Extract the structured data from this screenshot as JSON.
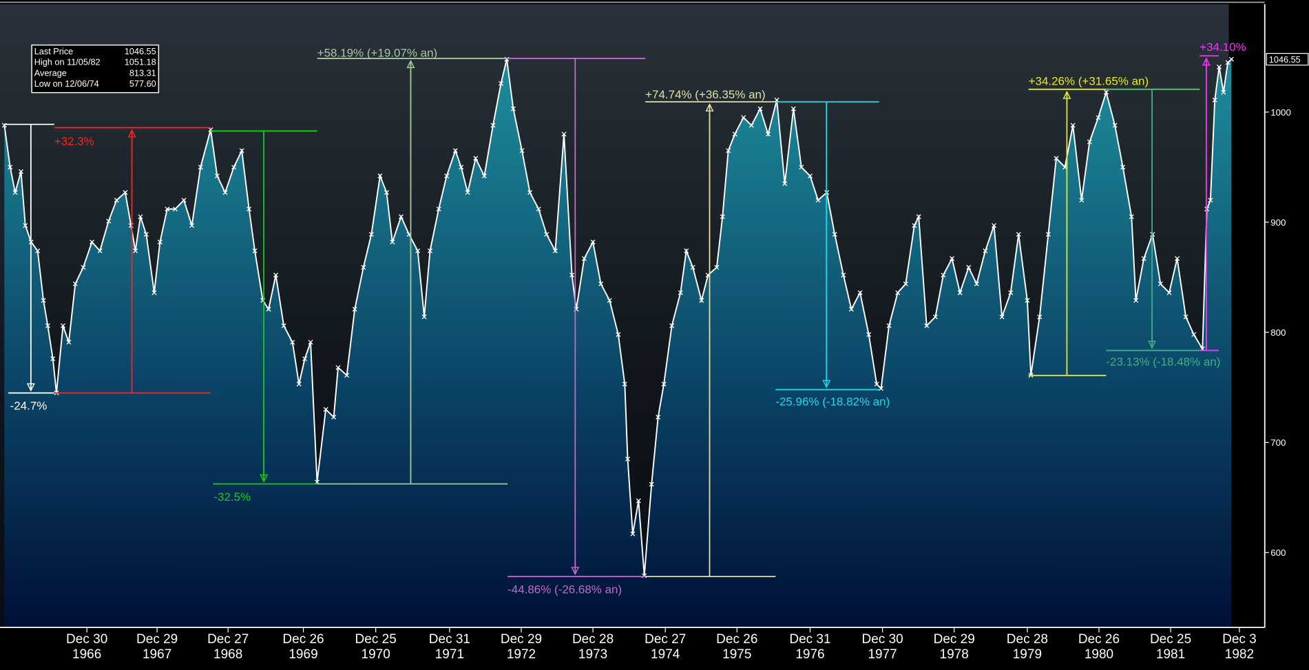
{
  "chart_data": {
    "type": "line",
    "xlim": [
      1965.8,
      1983.27
    ],
    "ylim": [
      532,
      1098
    ],
    "yticks": [
      600,
      700,
      800,
      900,
      1000
    ],
    "xticks": [
      {
        "value": 1967.0,
        "label": "Dec 30\n1966"
      },
      {
        "value": 1967.97,
        "label": "Dec 29\n1967"
      },
      {
        "value": 1968.95,
        "label": "Dec 27\n1968"
      },
      {
        "value": 1969.99,
        "label": "Dec 26\n1969"
      },
      {
        "value": 1970.99,
        "label": "Dec 25\n1970"
      },
      {
        "value": 1972.01,
        "label": "Dec 31\n1971"
      },
      {
        "value": 1973.0,
        "label": "Dec 29\n1972"
      },
      {
        "value": 1973.99,
        "label": "Dec 28\n1973"
      },
      {
        "value": 1974.99,
        "label": "Dec 27\n1974"
      },
      {
        "value": 1975.98,
        "label": "Dec 26\n1975"
      },
      {
        "value": 1976.99,
        "label": "Dec 31\n1976"
      },
      {
        "value": 1977.99,
        "label": "Dec 30\n1977"
      },
      {
        "value": 1978.98,
        "label": "Dec 29\n1978"
      },
      {
        "value": 1979.99,
        "label": "Dec 28\n1979"
      },
      {
        "value": 1980.98,
        "label": "Dec 26\n1980"
      },
      {
        "value": 1981.97,
        "label": "Dec 25\n1981"
      },
      {
        "value": 1982.92,
        "label": "Dec 3\n1982"
      }
    ],
    "area_colors": [
      "#1c8898",
      "#0b4466",
      "#001038"
    ],
    "background_colors": [
      "#29323a",
      "#10161b",
      "#080c16"
    ],
    "series": [
      {
        "color": "#ffffff",
        "x": [
          1965.86,
          1965.94,
          1966.01,
          1966.09,
          1966.15,
          1966.23,
          1966.32,
          1966.4,
          1966.46,
          1966.53,
          1966.58,
          1966.67,
          1966.75,
          1966.84,
          1966.95,
          1967.07,
          1967.18,
          1967.3,
          1967.41,
          1967.53,
          1967.61,
          1967.67,
          1967.74,
          1967.82,
          1967.93,
          1968.01,
          1968.11,
          1968.22,
          1968.34,
          1968.45,
          1968.57,
          1968.71,
          1968.8,
          1968.91,
          1969.03,
          1969.14,
          1969.24,
          1969.32,
          1969.43,
          1969.51,
          1969.61,
          1969.72,
          1969.84,
          1969.93,
          1970.01,
          1970.09,
          1970.18,
          1970.3,
          1970.41,
          1970.47,
          1970.59,
          1970.7,
          1970.82,
          1970.93,
          1971.05,
          1971.14,
          1971.22,
          1971.34,
          1971.45,
          1971.57,
          1971.66,
          1971.74,
          1971.86,
          1971.97,
          1972.09,
          1972.17,
          1972.26,
          1972.37,
          1972.49,
          1972.61,
          1972.72,
          1972.8,
          1972.89,
          1973.01,
          1973.12,
          1973.24,
          1973.35,
          1973.47,
          1973.59,
          1973.7,
          1973.76,
          1973.87,
          1973.99,
          1974.1,
          1974.22,
          1974.34,
          1974.43,
          1974.47,
          1974.54,
          1974.62,
          1974.7,
          1974.8,
          1974.89,
          1974.97,
          1975.08,
          1975.2,
          1975.28,
          1975.37,
          1975.49,
          1975.58,
          1975.7,
          1975.78,
          1975.86,
          1975.95,
          1976.07,
          1976.18,
          1976.3,
          1976.41,
          1976.53,
          1976.64,
          1976.76,
          1976.87,
          1976.99,
          1977.1,
          1977.22,
          1977.33,
          1977.45,
          1977.56,
          1977.68,
          1977.8,
          1977.91,
          1977.97,
          1978.08,
          1978.2,
          1978.31,
          1978.43,
          1978.49,
          1978.6,
          1978.72,
          1978.83,
          1978.95,
          1979.06,
          1979.18,
          1979.29,
          1979.41,
          1979.53,
          1979.64,
          1979.76,
          1979.87,
          1979.99,
          1980.04,
          1980.16,
          1980.28,
          1980.39,
          1980.51,
          1980.62,
          1980.74,
          1980.85,
          1980.97,
          1981.08,
          1981.2,
          1981.31,
          1981.43,
          1981.49,
          1981.6,
          1981.72,
          1981.83,
          1981.95,
          1982.06,
          1982.18,
          1982.29,
          1982.41,
          1982.47,
          1982.52,
          1982.58,
          1982.64,
          1982.7,
          1982.76,
          1982.81
        ],
        "values": [
          988,
          950,
          927,
          946,
          897,
          882,
          874,
          829,
          806,
          776,
          745,
          806,
          791,
          844,
          859,
          882,
          874,
          901,
          920,
          927,
          897,
          874,
          905,
          889,
          836,
          882,
          912,
          912,
          920,
          897,
          950,
          984,
          942,
          927,
          950,
          965,
          912,
          874,
          829,
          821,
          852,
          806,
          791,
          753,
          776,
          791,
          664,
          730,
          723,
          768,
          761,
          821,
          859,
          889,
          942,
          927,
          882,
          905,
          889,
          874,
          814,
          874,
          912,
          942,
          965,
          950,
          927,
          958,
          942,
          988,
          1026,
          1048,
          1003,
          965,
          927,
          912,
          889,
          874,
          980,
          852,
          821,
          867,
          882,
          844,
          829,
          798,
          753,
          685,
          617,
          647,
          579,
          662,
          723,
          753,
          806,
          836,
          874,
          859,
          829,
          852,
          859,
          905,
          965,
          980,
          995,
          988,
          1003,
          980,
          1011,
          935,
          1003,
          950,
          942,
          920,
          927,
          889,
          852,
          821,
          836,
          798,
          753,
          749,
          806,
          836,
          844,
          897,
          905,
          806,
          814,
          852,
          867,
          836,
          859,
          844,
          874,
          897,
          814,
          836,
          889,
          829,
          761,
          814,
          889,
          958,
          950,
          988,
          920,
          973,
          995,
          1018,
          988,
          950,
          905,
          829,
          867,
          889,
          844,
          836,
          867,
          814,
          798,
          785,
          912,
          920,
          1011,
          1041,
          1018,
          1045,
          1048
        ]
      }
    ],
    "annotations": [
      {
        "text": "-24.7%",
        "color": "#ffffff"
      },
      {
        "text": "+32.3%",
        "color": "#ff2020"
      },
      {
        "text": "-32.5%",
        "color": "#10d010"
      },
      {
        "text": "+58.19% (+19.07% an)",
        "color": "#a8c8a0"
      },
      {
        "text": "-44.86% (-26.68% an)",
        "color": "#c868c8"
      },
      {
        "text": "+74.74% (+36.35% an)",
        "color": "#e0e0a8"
      },
      {
        "text": "-25.96% (-18.82% an)",
        "color": "#20d8e8"
      },
      {
        "text": "+34.26% (+31.65% an)",
        "color": "#e8e820"
      },
      {
        "text": "-23.13% (-18.48% an)",
        "color": "#40b088"
      },
      {
        "text": "+34.10%",
        "color": "#ff30ff"
      }
    ],
    "info_box": {
      "rows": [
        [
          "Last Price",
          "1046.55"
        ],
        [
          "High on 11/05/82",
          "1051.18"
        ],
        [
          "Average",
          "813.31"
        ],
        [
          "Low on 12/06/74",
          "577.60"
        ]
      ]
    }
  }
}
